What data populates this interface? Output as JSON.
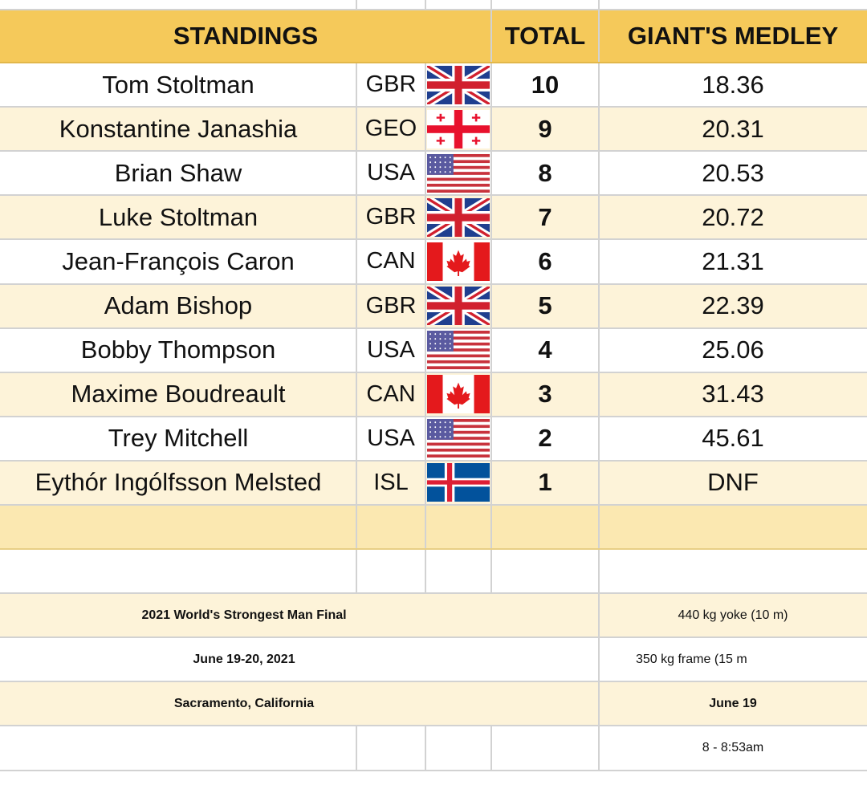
{
  "headers": {
    "standings": "STANDINGS",
    "total": "TOTAL",
    "event": "GIANT'S MEDLEY"
  },
  "rows": [
    {
      "name": "Tom Stoltman",
      "country": "GBR",
      "flag": "uk-flag-icon",
      "total": "10",
      "result": "18.36"
    },
    {
      "name": "Konstantine Janashia",
      "country": "GEO",
      "flag": "georgia-flag-icon",
      "total": "9",
      "result": "20.31"
    },
    {
      "name": "Brian Shaw",
      "country": "USA",
      "flag": "usa-flag-icon",
      "total": "8",
      "result": "20.53"
    },
    {
      "name": "Luke Stoltman",
      "country": "GBR",
      "flag": "uk-flag-icon",
      "total": "7",
      "result": "20.72"
    },
    {
      "name": "Jean-François Caron",
      "country": "CAN",
      "flag": "canada-flag-icon",
      "total": "6",
      "result": "21.31"
    },
    {
      "name": "Adam Bishop",
      "country": "GBR",
      "flag": "uk-flag-icon",
      "total": "5",
      "result": "22.39"
    },
    {
      "name": "Bobby Thompson",
      "country": "USA",
      "flag": "usa-flag-icon",
      "total": "4",
      "result": "25.06"
    },
    {
      "name": "Maxime Boudreault",
      "country": "CAN",
      "flag": "canada-flag-icon",
      "total": "3",
      "result": "31.43"
    },
    {
      "name": "Trey Mitchell",
      "country": "USA",
      "flag": "usa-flag-icon",
      "total": "2",
      "result": "45.61"
    },
    {
      "name": "Eythór Ingólfsson Melsted",
      "country": "ISL",
      "flag": "iceland-flag-icon",
      "total": "1",
      "result": "DNF"
    }
  ],
  "info": {
    "event_title": "2021 World's Strongest Man Final",
    "dates": "June 19-20, 2021",
    "location": "Sacramento, California",
    "yoke": "440 kg yoke (10 m)",
    "frame": "350 kg frame (15 m",
    "event_date": "June 19",
    "event_time": "8 - 8:53am"
  },
  "colors": {
    "header": "#f5c95a",
    "alt_row": "#fdf3d9",
    "blank_gold": "#fbe8b1",
    "grid": "#d2d2d2"
  }
}
